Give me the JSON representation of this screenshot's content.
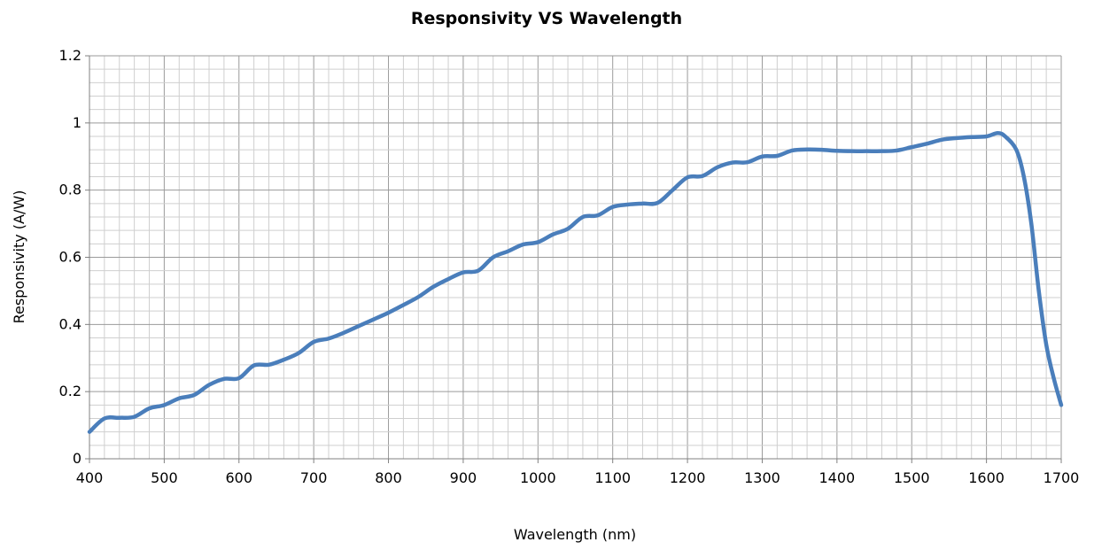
{
  "chart_data": {
    "type": "line",
    "title": "Responsivity VS Wavelength",
    "xlabel": "Wavelength (nm)",
    "ylabel": "Responsivity (A/W)",
    "xlim": [
      400,
      1700
    ],
    "ylim": [
      0,
      1.2
    ],
    "x_ticks": [
      400,
      500,
      600,
      700,
      800,
      900,
      1000,
      1100,
      1200,
      1300,
      1400,
      1500,
      1600,
      1700
    ],
    "y_ticks": [
      0,
      0.2,
      0.4,
      0.6,
      0.8,
      1,
      1.2
    ],
    "y_tick_labels": [
      "0",
      "0.2",
      "0.4",
      "0.6",
      "0.8",
      "1",
      "1.2"
    ],
    "grid": true,
    "legend": "none",
    "series": [
      {
        "color": "#4a7ebb",
        "points": [
          [
            400,
            0.08
          ],
          [
            420,
            0.12
          ],
          [
            440,
            0.122
          ],
          [
            460,
            0.125
          ],
          [
            480,
            0.15
          ],
          [
            500,
            0.16
          ],
          [
            520,
            0.18
          ],
          [
            540,
            0.19
          ],
          [
            560,
            0.22
          ],
          [
            580,
            0.238
          ],
          [
            600,
            0.24
          ],
          [
            620,
            0.278
          ],
          [
            640,
            0.28
          ],
          [
            660,
            0.295
          ],
          [
            680,
            0.315
          ],
          [
            700,
            0.348
          ],
          [
            720,
            0.358
          ],
          [
            740,
            0.375
          ],
          [
            760,
            0.395
          ],
          [
            780,
            0.415
          ],
          [
            800,
            0.435
          ],
          [
            820,
            0.458
          ],
          [
            840,
            0.482
          ],
          [
            860,
            0.512
          ],
          [
            880,
            0.535
          ],
          [
            900,
            0.555
          ],
          [
            920,
            0.56
          ],
          [
            940,
            0.6
          ],
          [
            960,
            0.618
          ],
          [
            980,
            0.638
          ],
          [
            1000,
            0.645
          ],
          [
            1020,
            0.668
          ],
          [
            1040,
            0.685
          ],
          [
            1060,
            0.72
          ],
          [
            1080,
            0.725
          ],
          [
            1100,
            0.75
          ],
          [
            1120,
            0.757
          ],
          [
            1140,
            0.76
          ],
          [
            1160,
            0.762
          ],
          [
            1180,
            0.8
          ],
          [
            1200,
            0.838
          ],
          [
            1220,
            0.842
          ],
          [
            1240,
            0.868
          ],
          [
            1260,
            0.882
          ],
          [
            1280,
            0.883
          ],
          [
            1300,
            0.9
          ],
          [
            1320,
            0.902
          ],
          [
            1340,
            0.918
          ],
          [
            1360,
            0.921
          ],
          [
            1380,
            0.92
          ],
          [
            1400,
            0.917
          ],
          [
            1420,
            0.916
          ],
          [
            1440,
            0.916
          ],
          [
            1460,
            0.916
          ],
          [
            1480,
            0.918
          ],
          [
            1500,
            0.928
          ],
          [
            1520,
            0.938
          ],
          [
            1540,
            0.95
          ],
          [
            1560,
            0.955
          ],
          [
            1580,
            0.958
          ],
          [
            1600,
            0.96
          ],
          [
            1615,
            0.97
          ],
          [
            1625,
            0.96
          ],
          [
            1640,
            0.92
          ],
          [
            1650,
            0.84
          ],
          [
            1660,
            0.7
          ],
          [
            1670,
            0.5
          ],
          [
            1680,
            0.34
          ],
          [
            1690,
            0.24
          ],
          [
            1700,
            0.16
          ]
        ]
      }
    ]
  }
}
